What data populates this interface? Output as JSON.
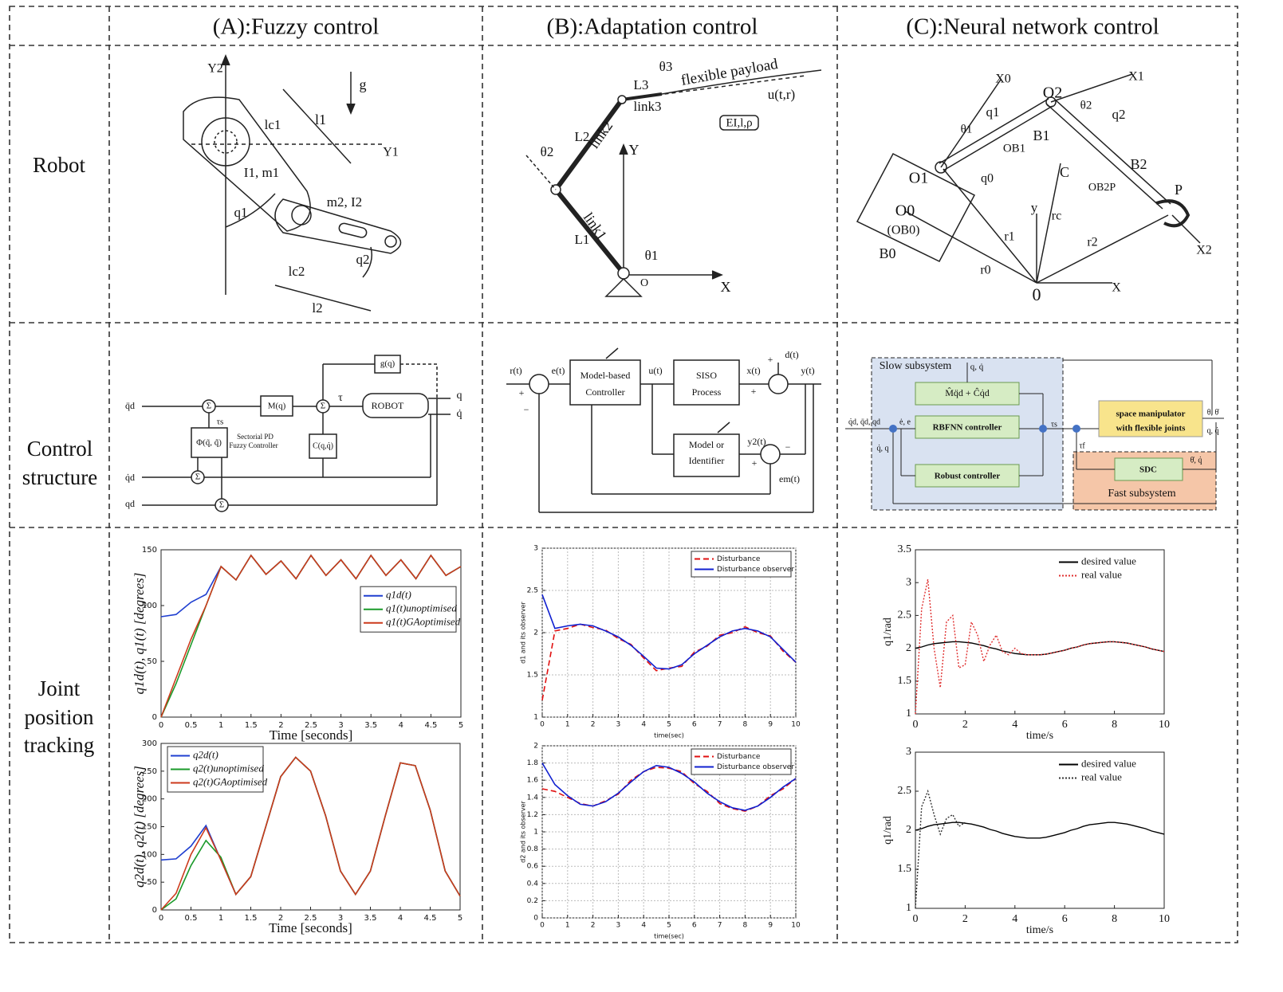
{
  "header": {
    "columns": [
      "(A):Fuzzy control",
      "(B):Adaptation control",
      "(C):Neural network control"
    ]
  },
  "rows": [
    {
      "label": [
        "Robot"
      ]
    },
    {
      "label": [
        "Control",
        "structure"
      ]
    },
    {
      "label": [
        "Joint",
        "position",
        "tracking"
      ]
    }
  ],
  "diagrams": {
    "robot_a": [
      "Y2",
      "g",
      "l1",
      "lc1",
      "Y1",
      "I1, m1",
      "m2, I2",
      "q1",
      "q2",
      "lc2",
      "l2"
    ],
    "robot_b": [
      "θ3",
      "L3",
      "flexible payload",
      "u(t,r)",
      "link3",
      "EI,l,ρ",
      "L2",
      "link2",
      "θ2",
      "Y",
      "link1",
      "L1",
      "θ1",
      "O",
      "X"
    ],
    "robot_c": [
      "X0",
      "O2",
      "θ2",
      "X1",
      "q1",
      "θ1",
      "q2",
      "B1",
      "OB1",
      "C",
      "B2",
      "O1",
      "q0",
      "OB2P",
      "P",
      "O0",
      "(OB0)",
      "y",
      "rc",
      "B0",
      "r1",
      "r2",
      "r0",
      "0",
      "X",
      "X2"
    ],
    "control_a": [
      "g(q)",
      "q̈d",
      "Σ",
      "M(q)",
      "Σ",
      "τ",
      "ROBOT",
      "q",
      "q̇",
      "τs",
      "Φ(q̃, q̃̇)",
      "Sectorial PD",
      "Fuzzy Controller",
      "C(q,q̇)",
      "q̇d",
      "Σ",
      "qd",
      "Σ"
    ],
    "control_b": [
      "r(t)",
      "e(t)",
      "Model-based",
      "Controller",
      "u(t)",
      "SISO",
      "Process",
      "x(t)",
      "d(t)",
      "y(t)",
      "Model or",
      "Identifier",
      "y2(t)",
      "em(t)",
      "+",
      "−",
      "+",
      "+",
      "−",
      "+"
    ],
    "control_c": [
      "Slow subsystem",
      "q, q̇",
      "M̂q̈d + Ĉq̇d",
      "q̇d, q̈d, qd",
      "ė, e",
      "RBFNN  controller",
      "q̇, q",
      "Robust  controller",
      "τs",
      "τf",
      "space manipulator",
      "with flexible joints",
      "θ, θ̇",
      "q, q̇",
      "SDC",
      "θ̇, q̇",
      "Fast subsystem"
    ]
  },
  "chart_data": [
    {
      "type": "line",
      "xlabel": "Time [seconds]",
      "ylabel": "q1d(t), q1(t)  [degrees]",
      "legend": "center right",
      "legend_frame": true,
      "x": [
        0,
        0.25,
        0.5,
        0.75,
        1,
        1.25,
        1.5,
        1.75,
        2,
        2.25,
        2.5,
        2.75,
        3,
        3.25,
        3.5,
        3.75,
        4,
        4.25,
        4.5,
        4.75,
        5
      ],
      "xlim": [
        0,
        5
      ],
      "xticks": [
        0,
        0.5,
        1,
        1.5,
        2,
        2.5,
        3,
        3.5,
        4,
        4.5,
        5
      ],
      "ylim": [
        0,
        150
      ],
      "yticks": [
        0,
        50,
        100,
        150
      ],
      "grid": false,
      "series": [
        {
          "name": "q1d(t)",
          "color": "#1f3fd0",
          "linestyle": "solid",
          "values": [
            90,
            92,
            103,
            110,
            135,
            123,
            145,
            128,
            140,
            124,
            145,
            127,
            141,
            124,
            145,
            127,
            141,
            124,
            145,
            127,
            135
          ]
        },
        {
          "name": "q1(t)unoptimised",
          "color": "#1a9a2a",
          "linestyle": "solid",
          "values": [
            0,
            30,
            65,
            100,
            135,
            123,
            145,
            128,
            140,
            124,
            145,
            127,
            141,
            124,
            145,
            127,
            141,
            124,
            145,
            127,
            135
          ]
        },
        {
          "name": "q1(t)GAoptimised",
          "color": "#cc3a1c",
          "linestyle": "solid",
          "values": [
            0,
            35,
            70,
            100,
            135,
            123,
            145,
            128,
            140,
            124,
            145,
            127,
            141,
            124,
            145,
            127,
            141,
            124,
            145,
            127,
            135
          ]
        }
      ]
    },
    {
      "type": "line",
      "xlabel": "Time [seconds]",
      "ylabel": "q2d(t), q2(t)  [degrees]",
      "legend": "upper left",
      "legend_frame": true,
      "x": [
        0,
        0.25,
        0.5,
        0.75,
        1,
        1.25,
        1.5,
        1.75,
        2,
        2.25,
        2.5,
        2.75,
        3,
        3.25,
        3.5,
        3.75,
        4,
        4.25,
        4.5,
        4.75,
        5
      ],
      "xlim": [
        0,
        5
      ],
      "xticks": [
        0,
        0.5,
        1,
        1.5,
        2,
        2.5,
        3,
        3.5,
        4,
        4.5,
        5
      ],
      "ylim": [
        0,
        300
      ],
      "yticks": [
        0,
        50,
        100,
        150,
        200,
        250,
        300
      ],
      "grid": false,
      "series": [
        {
          "name": "q2d(t)",
          "color": "#1f3fd0",
          "linestyle": "solid",
          "values": [
            90,
            92,
            115,
            152,
            90,
            28,
            60,
            150,
            240,
            275,
            250,
            170,
            70,
            28,
            70,
            170,
            265,
            260,
            180,
            70,
            25
          ]
        },
        {
          "name": "q2(t)unoptimised",
          "color": "#1a9a2a",
          "linestyle": "solid",
          "values": [
            0,
            20,
            80,
            125,
            95,
            28,
            60,
            150,
            240,
            275,
            250,
            170,
            70,
            28,
            70,
            170,
            265,
            260,
            180,
            70,
            25
          ]
        },
        {
          "name": "q2(t)GAoptimised",
          "color": "#cc3a1c",
          "linestyle": "solid",
          "values": [
            0,
            30,
            100,
            148,
            90,
            28,
            60,
            150,
            240,
            275,
            250,
            170,
            70,
            28,
            70,
            170,
            265,
            260,
            180,
            70,
            25
          ]
        }
      ]
    },
    {
      "type": "line",
      "xlabel": "time(sec)",
      "ylabel": "d1 and its observer",
      "legend": "upper right",
      "legend_frame": true,
      "x": [
        0,
        0.5,
        1,
        1.5,
        2,
        2.5,
        3,
        3.5,
        4,
        4.5,
        5,
        5.5,
        6,
        6.5,
        7,
        7.5,
        8,
        8.5,
        9,
        9.5,
        10
      ],
      "xlim": [
        0,
        10
      ],
      "xticks": [
        0,
        1,
        2,
        3,
        4,
        5,
        6,
        7,
        8,
        9,
        10
      ],
      "ylim": [
        1,
        3
      ],
      "yticks": [
        1,
        1.5,
        2,
        2.5,
        3
      ],
      "grid": true,
      "series": [
        {
          "name": "Disturbance",
          "color": "#e01010",
          "linestyle": "dashed",
          "values": [
            1.2,
            2.02,
            2.05,
            2.1,
            2.06,
            2.03,
            1.93,
            1.86,
            1.7,
            1.55,
            1.58,
            1.6,
            1.77,
            1.84,
            1.97,
            2.0,
            2.07,
            2.0,
            1.96,
            1.78,
            1.65
          ]
        },
        {
          "name": "Disturbance observer",
          "color": "#1020d0",
          "linestyle": "solid",
          "values": [
            2.45,
            2.05,
            2.08,
            2.1,
            2.08,
            2.02,
            1.95,
            1.85,
            1.72,
            1.58,
            1.57,
            1.62,
            1.75,
            1.85,
            1.95,
            2.02,
            2.05,
            2.02,
            1.95,
            1.8,
            1.65
          ]
        }
      ]
    },
    {
      "type": "line",
      "xlabel": "time(sec)",
      "ylabel": "d2 and its observer",
      "legend": "upper right",
      "legend_frame": true,
      "x": [
        0,
        0.5,
        1,
        1.5,
        2,
        2.5,
        3,
        3.5,
        4,
        4.5,
        5,
        5.5,
        6,
        6.5,
        7,
        7.5,
        8,
        8.5,
        9,
        9.5,
        10
      ],
      "xlim": [
        0,
        10
      ],
      "xticks": [
        0,
        1,
        2,
        3,
        4,
        5,
        6,
        7,
        8,
        9,
        10
      ],
      "ylim": [
        0,
        2
      ],
      "yticks": [
        0,
        0.2,
        0.4,
        0.6,
        0.8,
        1,
        1.2,
        1.4,
        1.6,
        1.8,
        2
      ],
      "grid": true,
      "series": [
        {
          "name": "Disturbance",
          "color": "#e01010",
          "linestyle": "dashed",
          "values": [
            1.5,
            1.47,
            1.4,
            1.33,
            1.3,
            1.36,
            1.44,
            1.6,
            1.7,
            1.75,
            1.74,
            1.7,
            1.56,
            1.47,
            1.33,
            1.27,
            1.24,
            1.3,
            1.42,
            1.5,
            1.62
          ]
        },
        {
          "name": "Disturbance observer",
          "color": "#1020d0",
          "linestyle": "solid",
          "values": [
            1.8,
            1.55,
            1.42,
            1.32,
            1.3,
            1.35,
            1.45,
            1.58,
            1.7,
            1.77,
            1.75,
            1.68,
            1.58,
            1.45,
            1.35,
            1.28,
            1.25,
            1.3,
            1.4,
            1.52,
            1.62
          ]
        }
      ]
    },
    {
      "type": "line",
      "xlabel": "time/s",
      "ylabel": "q1/rad",
      "legend": "upper right",
      "legend_frame": false,
      "x": [
        0,
        0.25,
        0.5,
        0.75,
        1,
        1.25,
        1.5,
        1.75,
        2,
        2.25,
        2.5,
        2.75,
        3,
        3.25,
        3.5,
        3.75,
        4,
        4.25,
        4.5,
        4.75,
        5,
        5.25,
        5.5,
        5.75,
        6,
        6.25,
        6.5,
        6.75,
        7,
        7.25,
        7.5,
        7.75,
        8,
        8.25,
        8.5,
        8.75,
        9,
        9.25,
        9.5,
        9.75,
        10
      ],
      "xlim": [
        0,
        10
      ],
      "xticks": [
        0,
        2,
        4,
        6,
        8,
        10
      ],
      "ylim": [
        1,
        3.5
      ],
      "yticks": [
        1,
        1.5,
        2,
        2.5,
        3,
        3.5
      ],
      "grid": false,
      "series": [
        {
          "name": "desired value",
          "color": "#000000",
          "linestyle": "solid",
          "values": [
            2.0,
            2.02,
            2.05,
            2.07,
            2.08,
            2.09,
            2.1,
            2.1,
            2.09,
            2.08,
            2.06,
            2.04,
            2.01,
            1.99,
            1.96,
            1.94,
            1.92,
            1.91,
            1.9,
            1.9,
            1.9,
            1.91,
            1.93,
            1.95,
            1.97,
            2.0,
            2.02,
            2.05,
            2.07,
            2.08,
            2.09,
            2.1,
            2.1,
            2.09,
            2.08,
            2.06,
            2.04,
            2.02,
            1.99,
            1.97,
            1.95
          ]
        },
        {
          "name": "real value",
          "color": "#e03030",
          "linestyle": "dotted",
          "values": [
            1,
            2.6,
            3.05,
            2.0,
            1.4,
            2.4,
            2.5,
            1.7,
            1.75,
            2.4,
            2.2,
            1.8,
            2.05,
            2.2,
            1.95,
            1.9,
            2.0,
            1.92,
            1.9,
            1.9,
            1.9,
            1.91,
            1.93,
            1.95,
            1.97,
            2.0,
            2.02,
            2.05,
            2.07,
            2.08,
            2.09,
            2.1,
            2.1,
            2.09,
            2.08,
            2.06,
            2.04,
            2.02,
            1.99,
            1.97,
            1.95
          ]
        }
      ]
    },
    {
      "type": "line",
      "xlabel": "time/s",
      "ylabel": "q1/rad",
      "legend": "upper right",
      "legend_frame": false,
      "x": [
        0,
        0.25,
        0.5,
        0.75,
        1,
        1.25,
        1.5,
        1.75,
        2,
        2.25,
        2.5,
        2.75,
        3,
        3.25,
        3.5,
        3.75,
        4,
        4.25,
        4.5,
        4.75,
        5,
        5.25,
        5.5,
        5.75,
        6,
        6.25,
        6.5,
        6.75,
        7,
        7.25,
        7.5,
        7.75,
        8,
        8.25,
        8.5,
        8.75,
        9,
        9.25,
        9.5,
        9.75,
        10
      ],
      "xlim": [
        0,
        10
      ],
      "xticks": [
        0,
        2,
        4,
        6,
        8,
        10
      ],
      "ylim": [
        1,
        3
      ],
      "yticks": [
        1,
        1.5,
        2,
        2.5,
        3
      ],
      "grid": false,
      "series": [
        {
          "name": "desired value",
          "color": "#000000",
          "linestyle": "solid",
          "values": [
            2.0,
            2.02,
            2.05,
            2.07,
            2.08,
            2.09,
            2.1,
            2.1,
            2.09,
            2.08,
            2.06,
            2.04,
            2.01,
            1.99,
            1.96,
            1.94,
            1.92,
            1.91,
            1.9,
            1.9,
            1.9,
            1.91,
            1.93,
            1.95,
            1.97,
            2.0,
            2.02,
            2.05,
            2.07,
            2.08,
            2.09,
            2.1,
            2.1,
            2.09,
            2.08,
            2.06,
            2.04,
            2.02,
            1.99,
            1.97,
            1.95
          ]
        },
        {
          "name": "real value",
          "color": "#333333",
          "linestyle": "dotted",
          "values": [
            1,
            2.3,
            2.5,
            2.2,
            1.95,
            2.15,
            2.2,
            2.05,
            2.1,
            null,
            null,
            null,
            null,
            null,
            null,
            null,
            null,
            null,
            null,
            null,
            null,
            null,
            null,
            null,
            null,
            null,
            null,
            null,
            null,
            null,
            null,
            null,
            null,
            null,
            null,
            null,
            null,
            null,
            null,
            null,
            null
          ]
        }
      ]
    }
  ]
}
